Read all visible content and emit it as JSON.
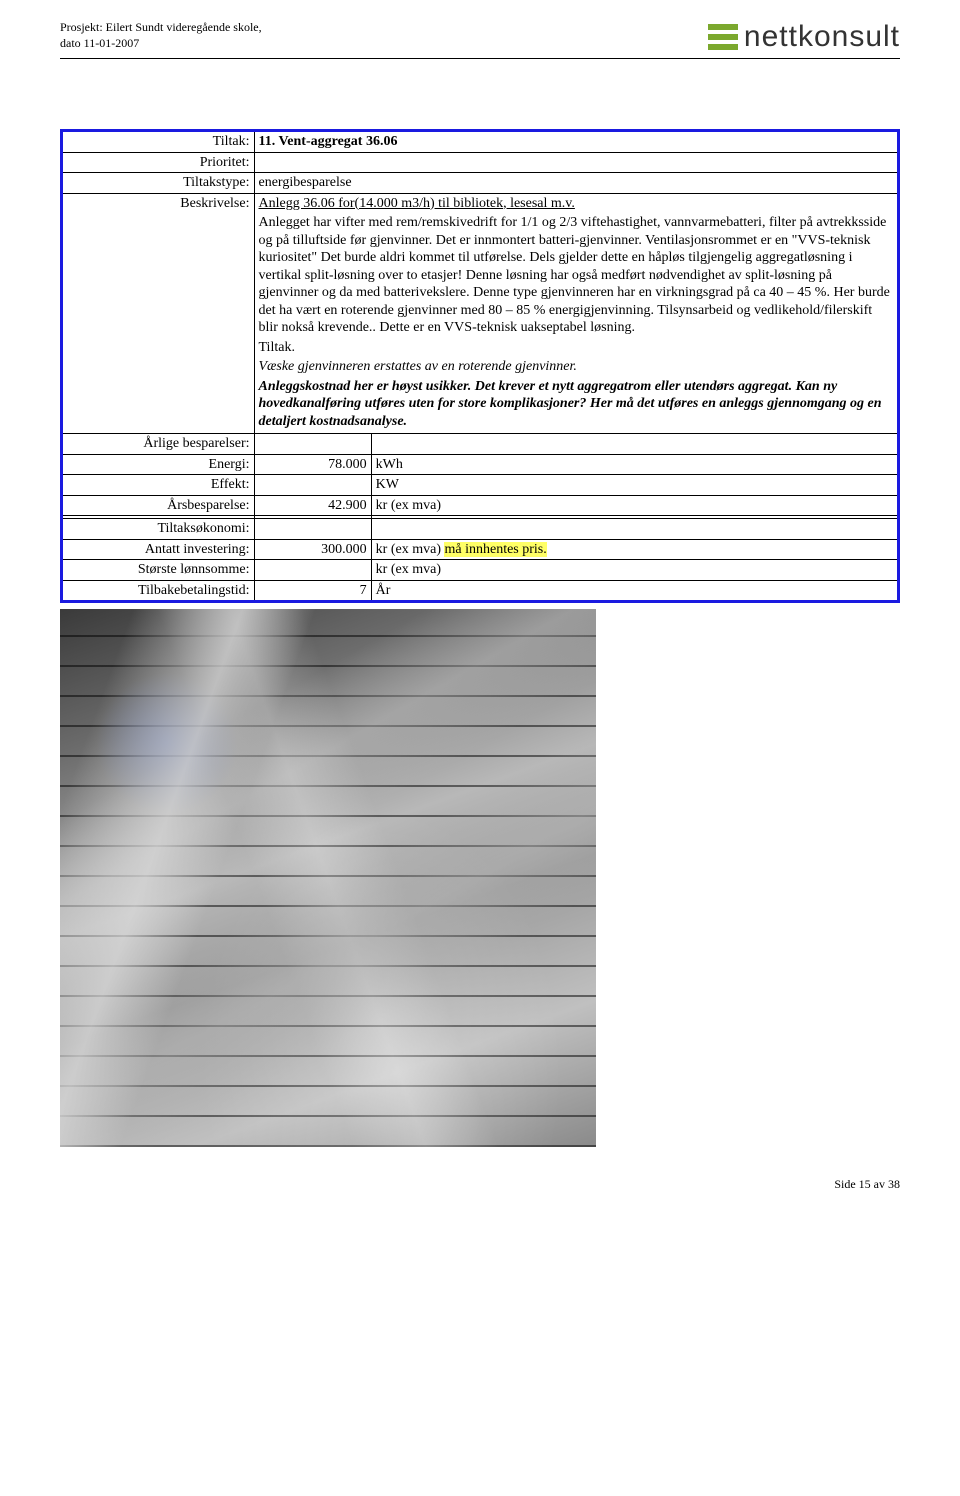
{
  "header": {
    "project_line1": "Prosjekt: Eilert Sundt videregående skole,",
    "project_line2": "dato 11-01-2007",
    "logo_text": "nettkonsult"
  },
  "table": {
    "tiltak_label": "Tiltak:",
    "tiltak_value": "11. Vent-aggregat 36.06",
    "prioritet_label": "Prioritet:",
    "tiltakstype_label": "Tiltakstype:",
    "tiltakstype_value": "energibesparelse",
    "beskrivelse_label": "Beskrivelse:",
    "desc_underline": "Anlegg 36.06 for(14.000 m3/h) til bibliotek, lesesal m.v.",
    "desc_body": "Anlegget har vifter med rem/remskivedrift for 1/1 og 2/3 viftehastighet, vannvarmebatteri, filter på avtrekksside og på tilluftside før gjenvinner. Det er innmontert batteri-gjenvinner. Ventilasjonsrommet er en \"VVS-teknisk kuriositet\" Det burde aldri kommet til utførelse. Dels gjelder dette en håpløs tilgjengelig aggregatløsning i vertikal split-løsning over to etasjer! Denne løsning har også medført nødvendighet av split-løsning på gjenvinner og da med batterivekslere. Denne type gjenvinneren har en virkningsgrad på ca 40 – 45 %. Her burde det ha vært en roterende gjenvinner med 80 – 85 % energigjenvinning. Tilsynsarbeid og vedlikehold/filerskift blir nokså krevende.. Dette er en VVS-teknisk uakseptabel løsning.",
    "desc_tiltak": "Tiltak.",
    "desc_italic": "Væske gjenvinneren erstattes av en roterende gjenvinner.",
    "desc_bold": "Anleggskostnad her er høyst usikker. Det krever et nytt aggregatrom eller utendørs aggregat. Kan ny hovedkanalføring utføres uten for store komplikasjoner? Her må det utføres en anleggs gjennomgang og en detaljert kostnadsanalyse.",
    "aarlige_label": "Årlige besparelser:",
    "energi_label": "Energi:",
    "energi_value": "78.000",
    "energi_unit": "kWh",
    "effekt_label": "Effekt:",
    "effekt_unit": "KW",
    "aarsbesparelse_label": "Årsbesparelse:",
    "aarsbesparelse_value": "42.900",
    "aarsbesparelse_unit": "kr (ex mva)",
    "tiltaksokonomi_label": "Tiltaksøkonomi:",
    "antatt_label": "Antatt investering:",
    "antatt_value": "300.000",
    "antatt_unit_prefix": "kr (ex mva) ",
    "antatt_unit_highlight": "må innhentes pris.",
    "storste_label": "Største lønnsomme:",
    "storste_unit": "kr (ex mva)",
    "tilbake_label": "Tilbakebetalingstid:",
    "tilbake_value": "7",
    "tilbake_unit": "År"
  },
  "footer": {
    "page": "Side 15 av 38"
  }
}
